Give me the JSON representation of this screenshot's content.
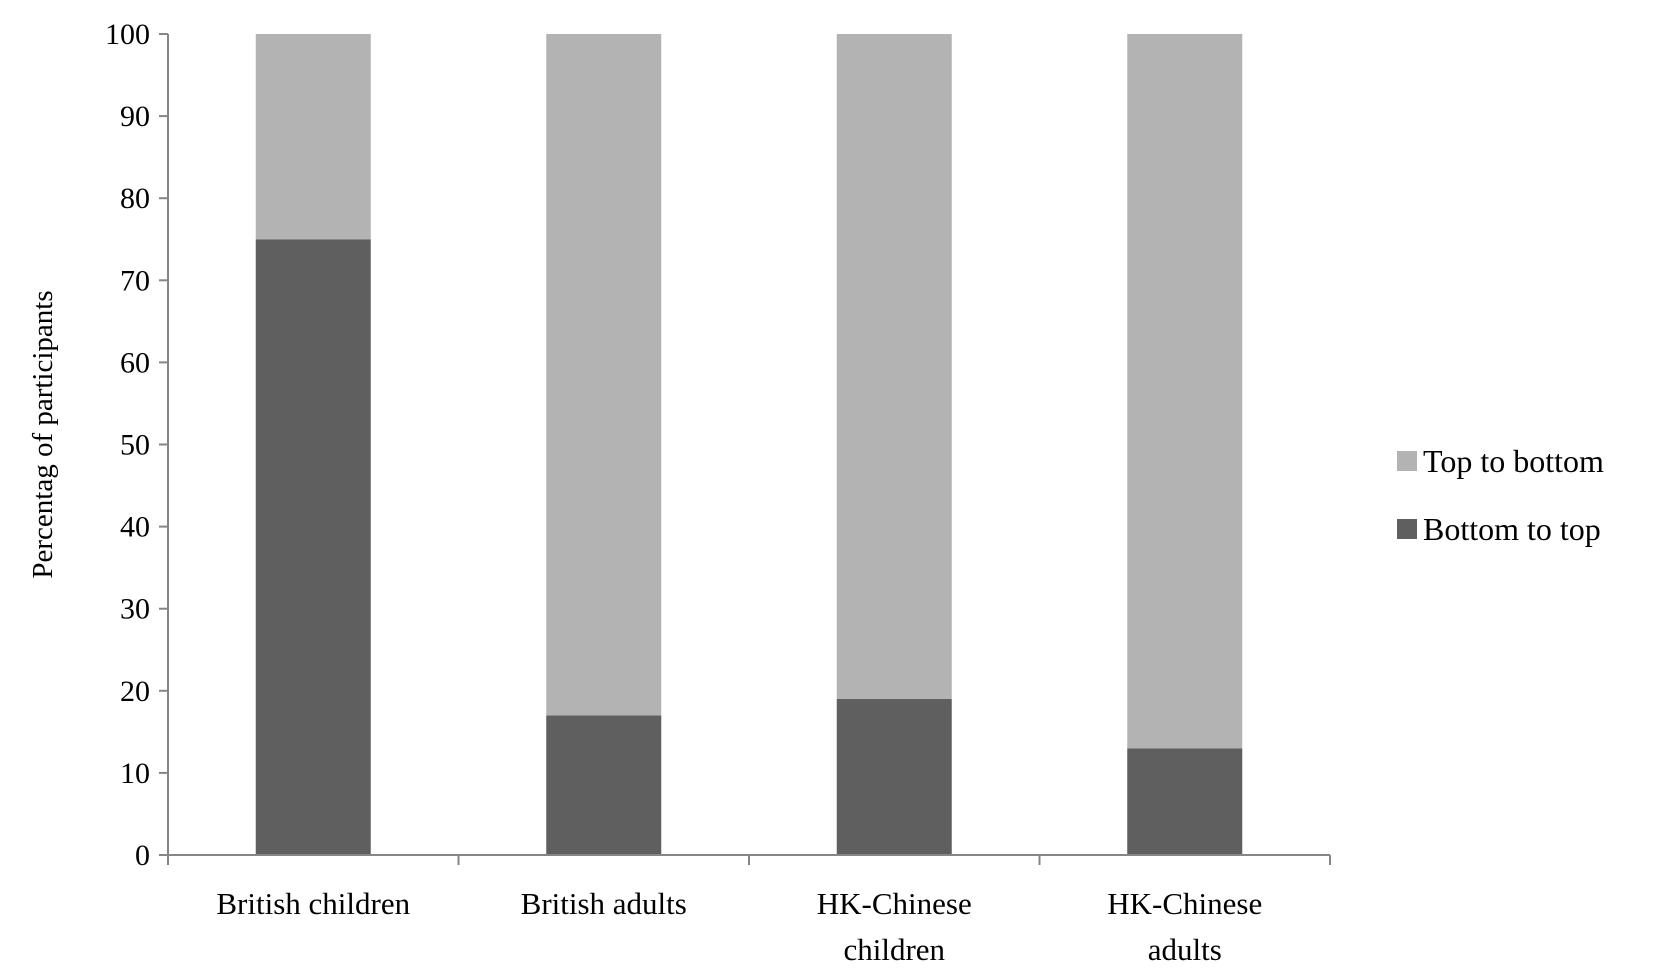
{
  "chart_data": {
    "type": "bar",
    "stacked": true,
    "ylabel": "Percentag of participants",
    "xlabel": "",
    "ylim": [
      0,
      100
    ],
    "yticks": [
      0,
      10,
      20,
      30,
      40,
      50,
      60,
      70,
      80,
      90,
      100
    ],
    "categories": [
      [
        "British children"
      ],
      [
        "British adults"
      ],
      [
        "HK-Chinese",
        "children"
      ],
      [
        "HK-Chinese",
        "adults"
      ]
    ],
    "series": [
      {
        "name": "Bottom to top",
        "color": "#5f5f5f",
        "values": [
          75,
          17,
          19,
          13
        ]
      },
      {
        "name": "Top to bottom",
        "color": "#b3b3b3",
        "values": [
          25,
          83,
          81,
          87
        ]
      }
    ],
    "legend": {
      "position": "right",
      "order": [
        "Top to bottom",
        "Bottom to top"
      ]
    },
    "grid": false
  }
}
